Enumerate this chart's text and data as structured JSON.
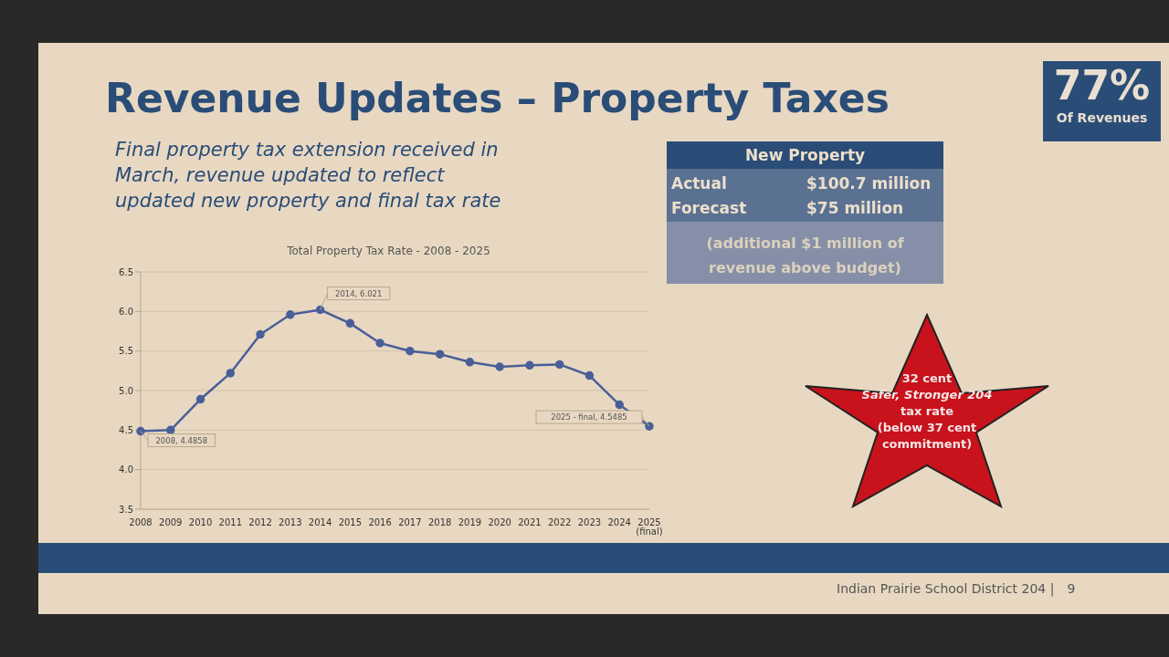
{
  "chart_data": [
    {
      "type": "line",
      "title": "Total Property Tax Rate - 2008 - 2025",
      "categories": [
        "2008",
        "2009",
        "2010",
        "2011",
        "2012",
        "2013",
        "2014",
        "2015",
        "2016",
        "2017",
        "2018",
        "2019",
        "2020",
        "2021",
        "2022",
        "2023",
        "2024",
        "2025\n(final)"
      ],
      "series": [
        {
          "color": "#4a5f98",
          "values": [
            4.4858,
            4.5,
            4.89,
            5.22,
            5.71,
            5.96,
            6.021,
            5.85,
            5.6,
            5.5,
            5.46,
            5.36,
            5.3,
            5.32,
            5.33,
            5.19,
            4.82,
            4.5485
          ]
        }
      ],
      "ylim": [
        3.5,
        6.5
      ],
      "yticks": [
        3.5,
        {
          "value": 4,
          "label": "4.0"
        },
        4.5,
        {
          "value": 5,
          "label": "5.0"
        },
        5.5,
        {
          "value": 6,
          "label": "6.0"
        },
        6.5
      ],
      "grid": "y",
      "marker": "circle",
      "line_style": "solid",
      "annotations": [
        {
          "text": "2008, 4.4858",
          "x": "2008",
          "y": 4.4858
        },
        {
          "text": "2014, 6.021",
          "x": "2014",
          "y": 6.021
        },
        {
          "text": "2025 - final, 4.5485",
          "x": "2025\n(final)",
          "y": 4.5485
        }
      ]
    },
    {
      "type": "other",
      "title": "Revenue Updates – Property Taxes",
      "subtitle": "Final property tax extension received in March, revenue updated to reflect updated new property and final tax rate",
      "annotations": [
        "77%",
        "Of Revenues",
        "New Property",
        "Actual",
        "$100.7 million",
        "Forecast",
        "$75 million",
        "(additional $1 million of revenue above budget)",
        "32 cent",
        "Safer, Stronger 204",
        "tax rate",
        "(below 37 cent commitment)",
        "Indian Prairie School District 204 |",
        "9"
      ]
    }
  ]
}
